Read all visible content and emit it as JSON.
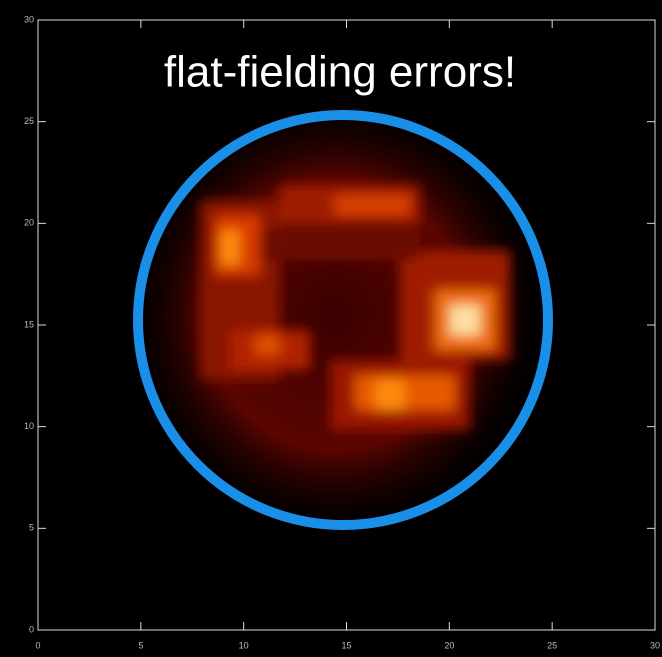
{
  "chart_data": {
    "type": "image",
    "annotation": "flat-fielding errors!",
    "xlim": [
      0,
      30
    ],
    "ylim": [
      0,
      30
    ],
    "xticks": [
      0,
      5,
      10,
      15,
      20,
      25,
      30
    ],
    "yticks": [
      0,
      5,
      10,
      15,
      20,
      25,
      30
    ]
  }
}
